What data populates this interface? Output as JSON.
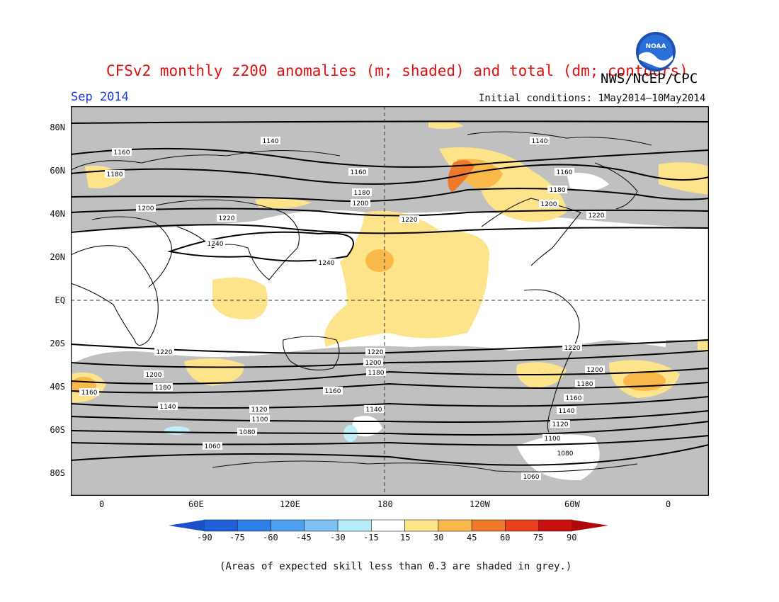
{
  "header": {
    "title": "CFSv2 monthly z200 anomalies (m; shaded) and total (dm; contours)",
    "agency": "NWS/NCEP/CPC",
    "valid_month": "Sep 2014",
    "initial_conditions": "Initial conditions: 1May2014–10May2014",
    "logo_text": "NOAA"
  },
  "map": {
    "lat_labels": [
      "80N",
      "60N",
      "40N",
      "20N",
      "EQ",
      "20S",
      "40S",
      "60S",
      "80S"
    ],
    "lon_labels": [
      "0",
      "60E",
      "120E",
      "180",
      "120W",
      "60W",
      "0"
    ],
    "contour_labels": [
      "1060",
      "1080",
      "1100",
      "1120",
      "1140",
      "1160",
      "1180",
      "1200",
      "1220",
      "1240"
    ],
    "colors": {
      "skill_grey": "#c0c0c0",
      "anom_15_30": "#fde38a",
      "anom_30_45": "#f8b84a",
      "anom_45_60": "#f0782a",
      "anom_neg_15": "#bfeef8"
    }
  },
  "colorbar": {
    "labels": [
      "-90",
      "-75",
      "-60",
      "-45",
      "-30",
      "-15",
      "15",
      "30",
      "45",
      "60",
      "75",
      "90"
    ],
    "colors": [
      "#1f5fd8",
      "#2f7fe8",
      "#4f9ff0",
      "#7fc0f5",
      "#b6ecf8",
      "#ffffff",
      "#fde38a",
      "#f8b84a",
      "#f0782a",
      "#e8401c",
      "#c81010"
    ],
    "end_colors": [
      "#1a50c8",
      "#b00808"
    ]
  },
  "caption": "(Areas of expected skill less than 0.3 are shaded in grey.)"
}
